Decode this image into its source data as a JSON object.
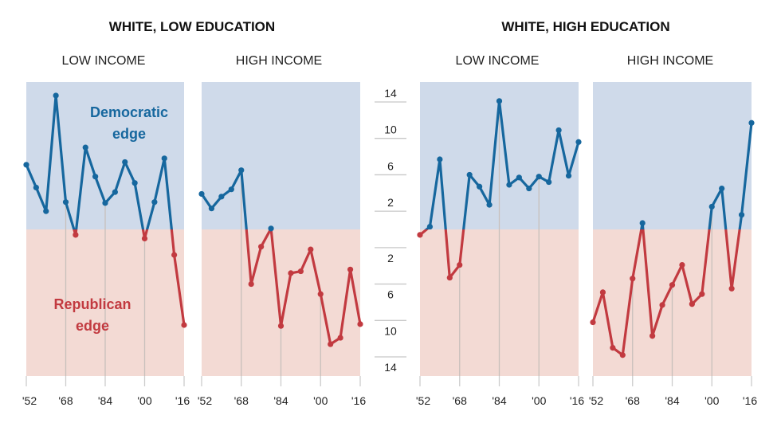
{
  "chart_data": {
    "type": "line",
    "years": [
      1952,
      1956,
      1960,
      1964,
      1968,
      1972,
      1976,
      1980,
      1984,
      1988,
      1992,
      1996,
      2000,
      2004,
      2008,
      2012,
      2016
    ],
    "x_tick_labels": [
      "'52",
      "'68",
      "'84",
      "'00",
      "'16"
    ],
    "x_tick_years": [
      1952,
      1968,
      1984,
      2000,
      2016
    ],
    "y_tick_labels_dem": [
      "14",
      "10",
      "6",
      "2"
    ],
    "y_tick_labels_rep": [
      "2",
      "6",
      "10",
      "14"
    ],
    "y_ticks": [
      14,
      10,
      6,
      2,
      -2,
      -6,
      -10,
      -14
    ],
    "ylim": [
      -16,
      16
    ],
    "reference_years": [
      1968,
      1984,
      2000
    ],
    "annotations": {
      "dem_line1": "Democratic",
      "dem_line2": "edge",
      "rep_line1": "Republican",
      "rep_line2": "edge"
    },
    "colors": {
      "dem_line": "#16679e",
      "rep_line": "#c23a40",
      "dem_bg": "#cfdaea",
      "rep_bg": "#f3dad4",
      "ref_line": "#c8c0bc"
    },
    "groups": [
      {
        "title": "WHITE, LOW EDUCATION",
        "panels": [
          {
            "subtitle": "LOW INCOME",
            "values": [
              7.1,
              4.6,
              2.0,
              14.7,
              3.0,
              -0.6,
              9.0,
              5.8,
              2.9,
              4.1,
              7.4,
              5.1,
              -1.0,
              3.0,
              7.8,
              -2.8,
              -10.5
            ]
          },
          {
            "subtitle": "HIGH INCOME",
            "values": [
              3.9,
              2.3,
              3.6,
              4.4,
              6.5,
              -6.0,
              -1.9,
              0.1,
              -10.6,
              -4.8,
              -4.6,
              -2.2,
              -7.1,
              -12.6,
              -11.9,
              -4.4,
              -10.4
            ]
          }
        ]
      },
      {
        "title": "WHITE, HIGH EDUCATION",
        "panels": [
          {
            "subtitle": "LOW INCOME",
            "values": [
              -0.6,
              0.3,
              7.7,
              -5.3,
              -3.9,
              6.0,
              4.7,
              2.7,
              14.1,
              4.9,
              5.7,
              4.5,
              5.8,
              5.2,
              10.9,
              5.9,
              9.6
            ]
          },
          {
            "subtitle": "HIGH INCOME",
            "values": [
              -10.2,
              -6.9,
              -13.0,
              -13.8,
              -5.4,
              0.7,
              -11.7,
              -8.3,
              -6.1,
              -3.9,
              -8.2,
              -7.1,
              2.5,
              4.5,
              -6.5,
              1.6,
              11.7
            ]
          }
        ]
      }
    ]
  }
}
